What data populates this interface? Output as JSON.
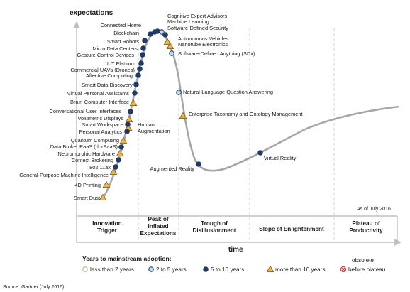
{
  "axes": {
    "y_label": "expectations",
    "x_label": "time"
  },
  "as_of": "As of July 2016",
  "phases": [
    {
      "lines": [
        "Innovation",
        "Trigger"
      ]
    },
    {
      "lines": [
        "Peak of",
        "Inflated",
        "Expectations"
      ]
    },
    {
      "lines": [
        "Trough of",
        "Disillusionment"
      ]
    },
    {
      "lines": [
        "Slope of Enlightenment"
      ]
    },
    {
      "lines": [
        "Plateau of",
        "Productivity"
      ]
    }
  ],
  "legend": {
    "title": "Years to mainstream adoption:",
    "items": [
      {
        "key": "lt2",
        "label": "less than 2 years",
        "fill": "#ffffff",
        "stroke": "#b8a77a"
      },
      {
        "key": "2to5",
        "label": "2 to 5 years",
        "fill": "#bcd6ee",
        "stroke": "#1f3a66"
      },
      {
        "key": "5to10",
        "label": "5 to 10 years",
        "fill": "#1f3a66",
        "stroke": "#1f3a66"
      },
      {
        "key": "gt10",
        "label": "more than 10 years",
        "fill": "#f2b440",
        "stroke": "#7a5a10"
      },
      {
        "key": "obsolete",
        "label_top": "obsolete",
        "label": "before plateau",
        "fill": "#ffffff",
        "stroke": "#cc3333"
      }
    ]
  },
  "source": "Source: Gartner (July 2016)",
  "technologies": [
    {
      "label": "Smart Dust",
      "cat": "gt10"
    },
    {
      "label": "4D Printing",
      "cat": "gt10"
    },
    {
      "label": "General-Purpose Machine Intelligence",
      "cat": "gt10"
    },
    {
      "label": "802.11ax",
      "cat": "5to10"
    },
    {
      "label": "Context Brokering",
      "cat": "5to10"
    },
    {
      "label": "Neuromorphic Hardware",
      "cat": "gt10"
    },
    {
      "label": "Data Broker PaaS (dbrPaaS)",
      "cat": "5to10"
    },
    {
      "label": "Quantum Computing",
      "cat": "gt10"
    },
    {
      "label": "Human Augmentation",
      "cat": "gt10"
    },
    {
      "label": "Personal Analytics",
      "cat": "5to10"
    },
    {
      "label": "Smart Workspace",
      "cat": "5to10"
    },
    {
      "label": "Volumetric Displays",
      "cat": "gt10"
    },
    {
      "label": "Conversational User Interfaces",
      "cat": "5to10"
    },
    {
      "label": "Brain-Computer Interface",
      "cat": "gt10"
    },
    {
      "label": "Virtual Personal Assistants",
      "cat": "5to10"
    },
    {
      "label": "Smart Data Discovery",
      "cat": "5to10"
    },
    {
      "label": "Affective Computing",
      "cat": "5to10"
    },
    {
      "label": "Commercial UAVs (Drones)",
      "cat": "5to10"
    },
    {
      "label": "IoT Platform",
      "cat": "5to10"
    },
    {
      "label": "Gesture Control Devices",
      "cat": "5to10"
    },
    {
      "label": "Micro Data Centers",
      "cat": "5to10"
    },
    {
      "label": "Smart Robots",
      "cat": "5to10"
    },
    {
      "label": "Blockchain",
      "cat": "5to10"
    },
    {
      "label": "Connected Home",
      "cat": "5to10"
    },
    {
      "label": "Cognitive Expert Advisors",
      "cat": "5to10"
    },
    {
      "label": "Machine Learning",
      "cat": "2to5"
    },
    {
      "label": "Software-Defined Security",
      "cat": "5to10"
    },
    {
      "label": "Autonomous Vehicles",
      "cat": "gt10"
    },
    {
      "label": "Nanotube Electronics",
      "cat": "gt10"
    },
    {
      "label": "Software-Defined Anything (SDx)",
      "cat": "2to5"
    },
    {
      "label": "Natural-Language Question Answering",
      "cat": "2to5"
    },
    {
      "label": "Enterprise Taxonomy and Ontology Management",
      "cat": "gt10"
    },
    {
      "label": "Augmented Reality",
      "cat": "5to10"
    },
    {
      "label": "Virtual Reality",
      "cat": "5to10"
    }
  ]
}
